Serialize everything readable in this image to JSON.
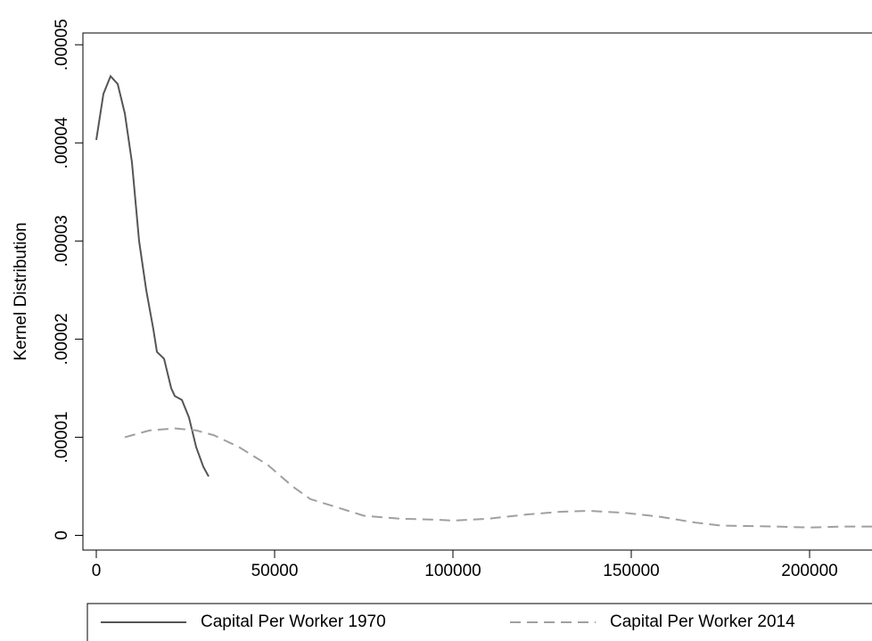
{
  "chart_data": {
    "type": "line",
    "y_label": "Kernel Distribution",
    "xlim": [
      -3750,
      217500
    ],
    "ylim": [
      -1.5e-06,
      5.12e-05
    ],
    "xticks": [
      0,
      50000,
      100000,
      150000,
      200000
    ],
    "yticks": [
      0,
      {
        "value": 1e-05,
        "label": ".00001"
      },
      {
        "value": 2e-05,
        "label": ".00002"
      },
      {
        "value": 3e-05,
        "label": ".00003"
      },
      {
        "value": 4e-05,
        "label": ".00004"
      },
      {
        "value": 5e-05,
        "label": ".00005"
      }
    ],
    "series": [
      {
        "name": "Capital Per Worker 1970",
        "color": "#555555",
        "line_style": "solid",
        "x": [
          0,
          2000,
          4000,
          6000,
          8000,
          10000,
          12000,
          14000,
          16000,
          17000,
          19000,
          21000,
          22000,
          24000,
          26000,
          28000,
          30000,
          31500
        ],
        "values": [
          4.03e-05,
          4.5e-05,
          4.68e-05,
          4.6e-05,
          4.3e-05,
          3.8e-05,
          3e-05,
          2.5e-05,
          2.1e-05,
          1.87e-05,
          1.8e-05,
          1.5e-05,
          1.42e-05,
          1.38e-05,
          1.2e-05,
          9e-06,
          7e-06,
          6e-06
        ]
      },
      {
        "name": "Capital Per Worker 2014",
        "color": "#a0a0a0",
        "line_style": "dashed",
        "x": [
          8000,
          15000,
          22000,
          28000,
          33000,
          40000,
          48000,
          55000,
          60000,
          68000,
          75000,
          85000,
          95000,
          100000,
          110000,
          120000,
          130000,
          138000,
          148000,
          158000,
          168000,
          175000,
          190000,
          200000,
          210000,
          217500
        ],
        "values": [
          1e-05,
          1.07e-05,
          1.09e-05,
          1.07e-05,
          1.02e-05,
          9e-06,
          7.2e-06,
          5e-06,
          3.7e-06,
          2.8e-06,
          2e-06,
          1.7e-06,
          1.6e-06,
          1.5e-06,
          1.7e-06,
          2.1e-06,
          2.4e-06,
          2.5e-06,
          2.3e-06,
          1.9e-06,
          1.3e-06,
          1e-06,
          9e-07,
          8e-07,
          9e-07,
          9e-07
        ]
      }
    ]
  }
}
